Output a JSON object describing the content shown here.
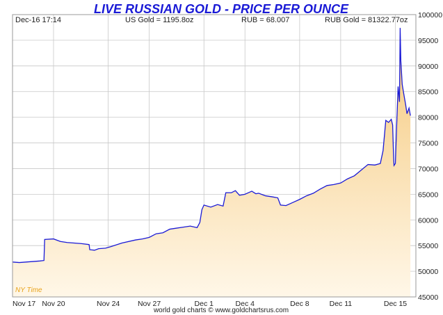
{
  "header": {
    "title": "LIVE RUSSIAN GOLD - PRICE PER OUNCE",
    "timestamp": "Dec-16  17:14",
    "us_gold": "US Gold = 1195.8oz",
    "rub": "RUB = 68.007",
    "rub_gold": "RUB Gold = 81322.77oz"
  },
  "footer": {
    "time_zone": "NY Time",
    "credit": "world gold charts © www.goldchartsrus.com"
  },
  "colors": {
    "line": "#1a1ad6",
    "fill_top": "#f5c87a",
    "fill_bottom": "#fff7e8",
    "grid": "#c8c8c8",
    "title": "#1a1ad6"
  },
  "chart_data": {
    "type": "area",
    "ylim": [
      45000,
      100000
    ],
    "xlim": [
      0,
      29.5
    ],
    "grid": true,
    "y_ticks": [
      45000,
      50000,
      55000,
      60000,
      65000,
      70000,
      75000,
      80000,
      85000,
      90000,
      95000,
      100000
    ],
    "x_ticks": [
      {
        "label": "Nov 17",
        "x": 0
      },
      {
        "label": "Nov 20",
        "x": 3
      },
      {
        "label": "Nov 24",
        "x": 7
      },
      {
        "label": "Nov 27",
        "x": 10
      },
      {
        "label": "Dec 1",
        "x": 14
      },
      {
        "label": "Dec 4",
        "x": 17
      },
      {
        "label": "Dec 8",
        "x": 21
      },
      {
        "label": "Dec 11",
        "x": 24
      },
      {
        "label": "Dec 15",
        "x": 28
      }
    ],
    "series": [
      {
        "values": [
          [
            0.0,
            51800
          ],
          [
            0.5,
            51700
          ],
          [
            1.0,
            51800
          ],
          [
            1.5,
            51900
          ],
          [
            2.0,
            52000
          ],
          [
            2.3,
            52100
          ],
          [
            2.35,
            56200
          ],
          [
            3.0,
            56300
          ],
          [
            3.5,
            55800
          ],
          [
            4.0,
            55600
          ],
          [
            5.0,
            55400
          ],
          [
            5.6,
            55200
          ],
          [
            5.65,
            54200
          ],
          [
            6.0,
            54100
          ],
          [
            6.3,
            54400
          ],
          [
            6.8,
            54500
          ],
          [
            7.2,
            54800
          ],
          [
            8.0,
            55500
          ],
          [
            9.0,
            56100
          ],
          [
            9.5,
            56300
          ],
          [
            10.0,
            56600
          ],
          [
            10.5,
            57300
          ],
          [
            11.0,
            57500
          ],
          [
            11.5,
            58200
          ],
          [
            12.0,
            58400
          ],
          [
            12.5,
            58600
          ],
          [
            13.0,
            58800
          ],
          [
            13.5,
            58500
          ],
          [
            13.7,
            59500
          ],
          [
            13.85,
            62000
          ],
          [
            14.0,
            62900
          ],
          [
            14.5,
            62500
          ],
          [
            15.0,
            63000
          ],
          [
            15.4,
            62700
          ],
          [
            15.6,
            65300
          ],
          [
            16.0,
            65300
          ],
          [
            16.3,
            65700
          ],
          [
            16.6,
            64800
          ],
          [
            17.0,
            65000
          ],
          [
            17.5,
            65600
          ],
          [
            17.8,
            65100
          ],
          [
            18.0,
            65200
          ],
          [
            18.5,
            64700
          ],
          [
            19.0,
            64500
          ],
          [
            19.4,
            64300
          ],
          [
            19.6,
            62900
          ],
          [
            20.0,
            62800
          ],
          [
            20.5,
            63400
          ],
          [
            21.0,
            64000
          ],
          [
            21.5,
            64700
          ],
          [
            22.0,
            65200
          ],
          [
            22.5,
            66000
          ],
          [
            23.0,
            66700
          ],
          [
            23.5,
            66900
          ],
          [
            24.0,
            67200
          ],
          [
            24.5,
            68000
          ],
          [
            25.0,
            68600
          ],
          [
            25.5,
            69700
          ],
          [
            26.0,
            70800
          ],
          [
            26.5,
            70700
          ],
          [
            26.9,
            71000
          ],
          [
            27.1,
            73500
          ],
          [
            27.3,
            79400
          ],
          [
            27.5,
            79000
          ],
          [
            27.7,
            79600
          ],
          [
            27.8,
            78500
          ],
          [
            27.85,
            74000
          ],
          [
            27.9,
            70600
          ],
          [
            28.0,
            71000
          ],
          [
            28.1,
            78800
          ],
          [
            28.2,
            86000
          ],
          [
            28.3,
            83000
          ],
          [
            28.35,
            97400
          ],
          [
            28.4,
            91000
          ],
          [
            28.5,
            86400
          ],
          [
            28.65,
            84000
          ],
          [
            28.75,
            82500
          ],
          [
            28.85,
            80700
          ],
          [
            29.0,
            81800
          ],
          [
            29.1,
            80300
          ]
        ]
      }
    ]
  }
}
